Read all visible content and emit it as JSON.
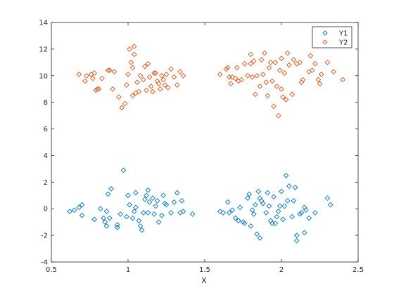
{
  "chart_data": {
    "type": "scatter",
    "title": "",
    "xlabel": "X",
    "ylabel": "",
    "xlim": [
      0.5,
      2.5
    ],
    "ylim": [
      -4,
      14
    ],
    "xticks": [
      0.5,
      1,
      1.5,
      2,
      2.5
    ],
    "yticks": [
      -4,
      -2,
      0,
      2,
      4,
      6,
      8,
      10,
      12,
      14
    ],
    "xtick_labels": [
      "0.5",
      "1",
      "1.5",
      "2",
      "2.5"
    ],
    "ytick_labels": [
      "-4",
      "-2",
      "0",
      "2",
      "4",
      "6",
      "8",
      "10",
      "12",
      "14"
    ],
    "grid": false,
    "legend": "top-right",
    "marker": "diamond",
    "series": [
      {
        "name": "Y1",
        "color": "#0072BD",
        "points": [
          [
            0.62,
            -0.2
          ],
          [
            0.65,
            -0.1
          ],
          [
            0.68,
            0.1
          ],
          [
            0.7,
            0.3
          ],
          [
            0.7,
            -0.5
          ],
          [
            0.78,
            -0.8
          ],
          [
            0.82,
            0.0
          ],
          [
            0.84,
            -0.7
          ],
          [
            0.85,
            -1.0
          ],
          [
            0.86,
            -1.3
          ],
          [
            0.86,
            -0.2
          ],
          [
            0.87,
            1.1
          ],
          [
            0.88,
            -0.7
          ],
          [
            0.89,
            1.5
          ],
          [
            0.93,
            -1.2
          ],
          [
            0.93,
            -1.4
          ],
          [
            0.95,
            -0.4
          ],
          [
            0.97,
            2.9
          ],
          [
            0.99,
            -0.6
          ],
          [
            1.0,
            1.0
          ],
          [
            1.01,
            0.3
          ],
          [
            1.03,
            -0.7
          ],
          [
            1.04,
            -0.2
          ],
          [
            1.05,
            0.1
          ],
          [
            1.05,
            1.2
          ],
          [
            1.07,
            -0.9
          ],
          [
            1.08,
            -1.3
          ],
          [
            1.09,
            -1.6
          ],
          [
            1.1,
            -0.3
          ],
          [
            1.11,
            0.7
          ],
          [
            1.12,
            1.0
          ],
          [
            1.13,
            -0.3
          ],
          [
            1.13,
            1.4
          ],
          [
            1.14,
            0.5
          ],
          [
            1.16,
            0.8
          ],
          [
            1.17,
            -0.4
          ],
          [
            1.18,
            0.2
          ],
          [
            1.19,
            0.6
          ],
          [
            1.2,
            -1.0
          ],
          [
            1.22,
            -0.5
          ],
          [
            1.23,
            1.0
          ],
          [
            1.24,
            0.4
          ],
          [
            1.25,
            0.3
          ],
          [
            1.28,
            -0.3
          ],
          [
            1.3,
            0.5
          ],
          [
            1.32,
            1.2
          ],
          [
            1.34,
            -0.3
          ],
          [
            1.35,
            0.6
          ],
          [
            1.36,
            -0.2
          ],
          [
            1.42,
            -0.4
          ],
          [
            1.6,
            -0.2
          ],
          [
            1.62,
            -0.3
          ],
          [
            1.65,
            0.5
          ],
          [
            1.66,
            -0.3
          ],
          [
            1.68,
            -0.1
          ],
          [
            1.7,
            -0.7
          ],
          [
            1.72,
            -0.9
          ],
          [
            1.73,
            0.1
          ],
          [
            1.75,
            -1.0
          ],
          [
            1.76,
            -1.1
          ],
          [
            1.78,
            0.8
          ],
          [
            1.79,
            1.1
          ],
          [
            1.8,
            -1.3
          ],
          [
            1.81,
            -0.1
          ],
          [
            1.82,
            -0.4
          ],
          [
            1.83,
            0.3
          ],
          [
            1.84,
            -1.9
          ],
          [
            1.85,
            1.3
          ],
          [
            1.86,
            -2.2
          ],
          [
            1.86,
            0.8
          ],
          [
            1.87,
            0.6
          ],
          [
            1.88,
            0.4
          ],
          [
            1.9,
            -0.3
          ],
          [
            1.91,
            1.2
          ],
          [
            1.92,
            0.2
          ],
          [
            1.93,
            -0.9
          ],
          [
            1.94,
            -1.1
          ],
          [
            1.95,
            0.9
          ],
          [
            1.96,
            -1.1
          ],
          [
            1.97,
            -0.6
          ],
          [
            1.98,
            -0.2
          ],
          [
            1.99,
            0.2
          ],
          [
            2.0,
            1.3
          ],
          [
            2.01,
            -0.8
          ],
          [
            2.02,
            0.2
          ],
          [
            2.03,
            2.5
          ],
          [
            2.04,
            0.6
          ],
          [
            2.05,
            1.7
          ],
          [
            2.07,
            -0.6
          ],
          [
            2.08,
            0.6
          ],
          [
            2.09,
            1.6
          ],
          [
            2.1,
            -2.0
          ],
          [
            2.1,
            -2.4
          ],
          [
            2.12,
            -0.4
          ],
          [
            2.13,
            -0.3
          ],
          [
            2.15,
            -1.8
          ],
          [
            2.16,
            -0.1
          ],
          [
            2.18,
            -0.7
          ],
          [
            2.22,
            -0.3
          ],
          [
            2.3,
            0.8
          ],
          [
            2.32,
            0.3
          ],
          [
            2.15,
            0.1
          ]
        ]
      },
      {
        "name": "Y2",
        "color": "#D95319",
        "points": [
          [
            0.68,
            10.1
          ],
          [
            0.72,
            9.6
          ],
          [
            0.73,
            10.0
          ],
          [
            0.76,
            10.1
          ],
          [
            0.77,
            9.8
          ],
          [
            0.78,
            10.2
          ],
          [
            0.79,
            8.9
          ],
          [
            0.8,
            9.0
          ],
          [
            0.81,
            9.0
          ],
          [
            0.83,
            9.8
          ],
          [
            0.87,
            10.4
          ],
          [
            0.88,
            10.4
          ],
          [
            0.9,
            9.0
          ],
          [
            0.91,
            10.3
          ],
          [
            0.94,
            8.4
          ],
          [
            0.96,
            7.6
          ],
          [
            0.98,
            7.9
          ],
          [
            0.99,
            9.3
          ],
          [
            1.0,
            10.1
          ],
          [
            1.01,
            12.0
          ],
          [
            1.02,
            11.0
          ],
          [
            1.03,
            8.5
          ],
          [
            1.03,
            10.6
          ],
          [
            1.04,
            11.6
          ],
          [
            1.04,
            12.2
          ],
          [
            1.05,
            8.7
          ],
          [
            1.06,
            9.5
          ],
          [
            1.07,
            8.8
          ],
          [
            1.08,
            10.0
          ],
          [
            1.1,
            9.7
          ],
          [
            1.11,
            10.7
          ],
          [
            1.12,
            8.9
          ],
          [
            1.13,
            10.9
          ],
          [
            1.14,
            9.9
          ],
          [
            1.15,
            9.2
          ],
          [
            1.16,
            8.8
          ],
          [
            1.17,
            10.2
          ],
          [
            1.18,
            10.2
          ],
          [
            1.19,
            9.6
          ],
          [
            1.2,
            9.4
          ],
          [
            1.21,
            9.0
          ],
          [
            1.22,
            10.0
          ],
          [
            1.23,
            9.7
          ],
          [
            1.24,
            9.3
          ],
          [
            1.25,
            10.1
          ],
          [
            1.26,
            9.1
          ],
          [
            1.28,
            10.5
          ],
          [
            1.3,
            9.9
          ],
          [
            1.32,
            9.3
          ],
          [
            1.34,
            10.3
          ],
          [
            1.36,
            10.0
          ],
          [
            1.6,
            10.1
          ],
          [
            1.64,
            10.5
          ],
          [
            1.65,
            10.6
          ],
          [
            1.66,
            9.9
          ],
          [
            1.67,
            9.4
          ],
          [
            1.68,
            9.9
          ],
          [
            1.7,
            9.8
          ],
          [
            1.71,
            10.6
          ],
          [
            1.72,
            9.6
          ],
          [
            1.74,
            9.7
          ],
          [
            1.76,
            10.9
          ],
          [
            1.78,
            10.0
          ],
          [
            1.8,
            11.6
          ],
          [
            1.8,
            10.9
          ],
          [
            1.81,
            9.9
          ],
          [
            1.82,
            11.1
          ],
          [
            1.83,
            8.6
          ],
          [
            1.84,
            10.0
          ],
          [
            1.86,
            9.2
          ],
          [
            1.87,
            11.2
          ],
          [
            1.88,
            10.1
          ],
          [
            1.89,
            11.7
          ],
          [
            1.9,
            9.5
          ],
          [
            1.91,
            8.5
          ],
          [
            1.92,
            10.6
          ],
          [
            1.93,
            11.0
          ],
          [
            1.94,
            9.6
          ],
          [
            1.95,
            7.7
          ],
          [
            1.96,
            11.0
          ],
          [
            1.97,
            9.2
          ],
          [
            1.98,
            7.0
          ],
          [
            1.99,
            10.4
          ],
          [
            2.0,
            9.0
          ],
          [
            2.0,
            11.3
          ],
          [
            2.01,
            8.4
          ],
          [
            2.02,
            10.2
          ],
          [
            2.03,
            8.2
          ],
          [
            2.04,
            11.7
          ],
          [
            2.05,
            10.8
          ],
          [
            2.07,
            8.6
          ],
          [
            2.08,
            11.2
          ],
          [
            2.1,
            10.9
          ],
          [
            2.12,
            11.0
          ],
          [
            2.13,
            9.5
          ],
          [
            2.14,
            9.7
          ],
          [
            2.18,
            10.3
          ],
          [
            2.19,
            11.5
          ],
          [
            2.2,
            10.4
          ],
          [
            2.22,
            10.9
          ],
          [
            2.24,
            9.7
          ],
          [
            2.25,
            9.4
          ],
          [
            2.26,
            10.1
          ],
          [
            2.3,
            11.0
          ],
          [
            2.34,
            10.3
          ],
          [
            2.4,
            9.7
          ]
        ]
      }
    ]
  }
}
